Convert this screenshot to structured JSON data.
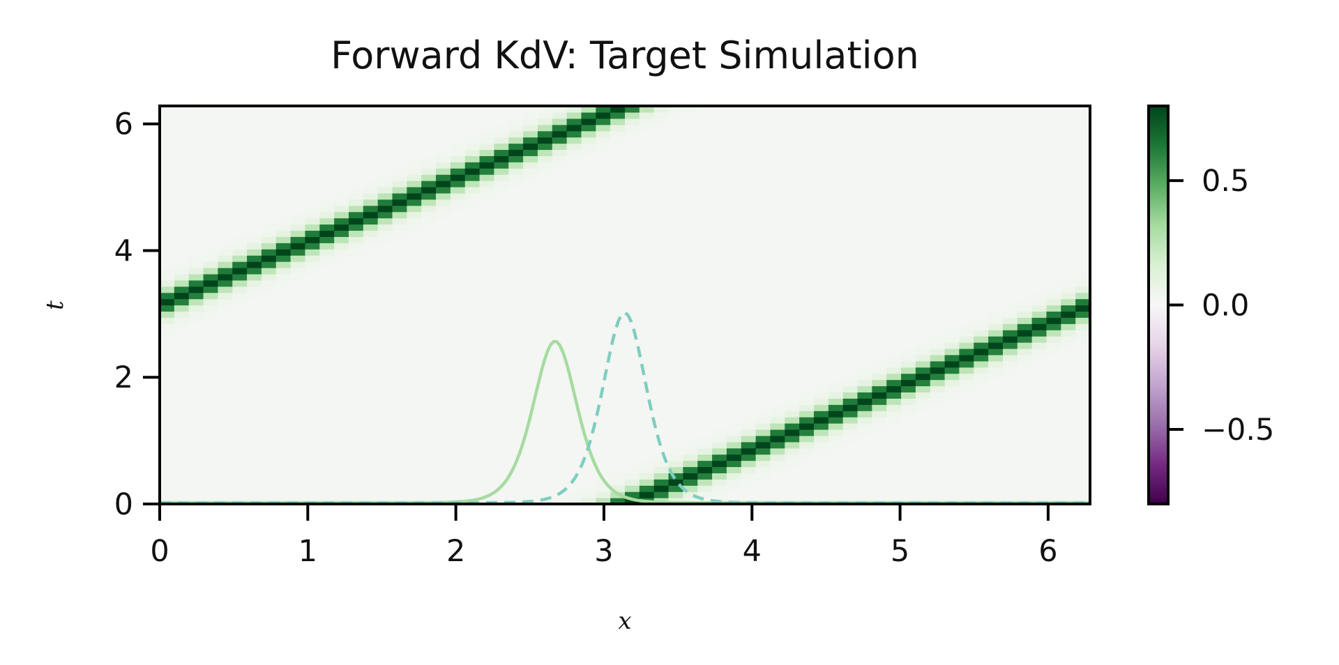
{
  "chart_data": {
    "type": "heatmap",
    "title": "Forward KdV: Target Simulation",
    "xlabel": "x",
    "ylabel": "t",
    "xlim": [
      0,
      6.283
    ],
    "ylim": [
      0,
      6.283
    ],
    "x_ticks": [
      0,
      1,
      2,
      3,
      4,
      5,
      6
    ],
    "x_tick_labels": [
      "0",
      "1",
      "2",
      "3",
      "4",
      "5",
      "6"
    ],
    "y_ticks": [
      0,
      2,
      4,
      6
    ],
    "y_tick_labels": [
      "0",
      "2",
      "4",
      "6"
    ],
    "heatmap": {
      "colormap": "PRGn",
      "vmin": -0.8,
      "vmax": 0.8,
      "background_value": 0.02,
      "soliton_amplitude": 0.9,
      "soliton_width": 0.15,
      "soliton_speed": 1.0,
      "soliton_initial_x": 3.14,
      "period_x": 6.283
    },
    "colorbar": {
      "ticks": [
        0.5,
        0.0,
        -0.5
      ],
      "tick_labels": [
        "0.5",
        "0.0",
        "−0.5"
      ],
      "range": [
        -0.8,
        0.8
      ]
    },
    "series": [
      {
        "style": "solid",
        "color": "#a6dba0",
        "center": 2.67,
        "peak_t": 2.55,
        "width": 0.2
      },
      {
        "style": "dashed",
        "color": "#7fcdc0",
        "center": 3.14,
        "peak_t": 3.0,
        "width": 0.2
      }
    ]
  }
}
